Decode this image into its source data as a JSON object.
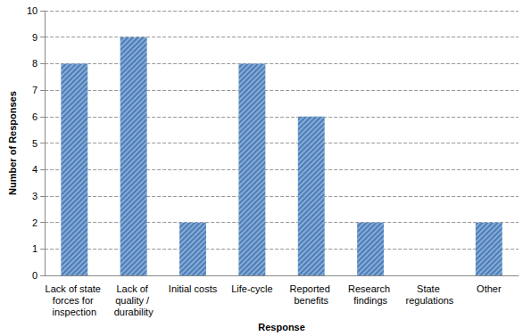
{
  "chart_data": {
    "type": "bar",
    "categories": [
      "Lack of state forces for inspection",
      "Lack of quality / durability",
      "Initial costs",
      "Life-cycle",
      "Reported benefits",
      "Research findings",
      "State regulations",
      "Other"
    ],
    "values": [
      8,
      9,
      2,
      8,
      6,
      2,
      0,
      2
    ],
    "color": "#4a7ebb",
    "x_label": "Response",
    "y_label": "Number of Responses",
    "ylim": [
      0,
      10
    ],
    "yticks": [
      0,
      1,
      2,
      3,
      4,
      5,
      6,
      7,
      8,
      9,
      10
    ],
    "grid": true
  }
}
